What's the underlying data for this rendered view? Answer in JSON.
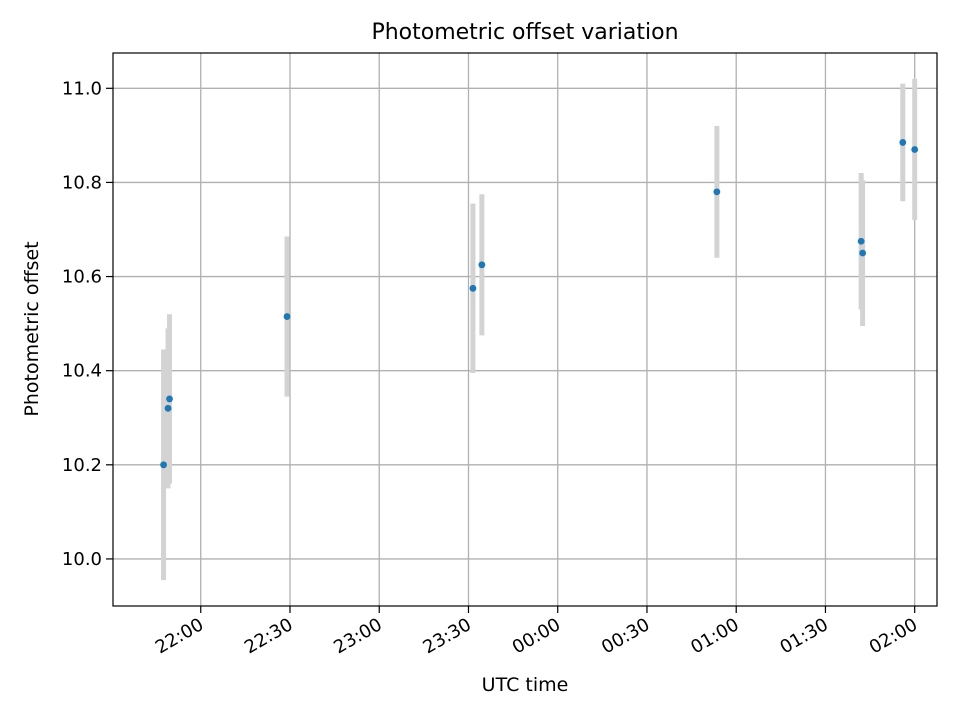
{
  "chart_data": {
    "type": "scatter",
    "title": "Photometric offset variation",
    "xlabel": "UTC time",
    "ylabel": "Photometric offset",
    "grid": true,
    "legend": "none",
    "error_bar_color": "#d3d3d3",
    "point_color": "#1f77b4",
    "x_ticks": [
      "22:00",
      "22:30",
      "23:00",
      "23:30",
      "00:00",
      "00:30",
      "01:00",
      "01:30",
      "02:00"
    ],
    "y_ticks": [
      "10.0",
      "10.2",
      "10.4",
      "10.6",
      "10.8",
      "11.0"
    ],
    "ylim": [
      9.9,
      11.075
    ],
    "xlim": [
      "21:30:30",
      "02:07:30"
    ],
    "points": [
      {
        "x": "21:47:30",
        "y": 10.2,
        "err": 0.245
      },
      {
        "x": "21:49:00",
        "y": 10.32,
        "err": 0.17
      },
      {
        "x": "21:49:30",
        "y": 10.34,
        "err": 0.18
      },
      {
        "x": "22:29:00",
        "y": 10.515,
        "err": 0.17
      },
      {
        "x": "23:31:30",
        "y": 10.575,
        "err": 0.18
      },
      {
        "x": "23:34:30",
        "y": 10.625,
        "err": 0.15
      },
      {
        "x": "00:53:30",
        "y": 10.78,
        "err": 0.14
      },
      {
        "x": "01:42:00",
        "y": 10.675,
        "err": 0.145
      },
      {
        "x": "01:42:30",
        "y": 10.65,
        "err": 0.155
      },
      {
        "x": "01:56:00",
        "y": 10.885,
        "err": 0.125
      },
      {
        "x": "02:00:00",
        "y": 10.87,
        "err": 0.15
      }
    ]
  }
}
